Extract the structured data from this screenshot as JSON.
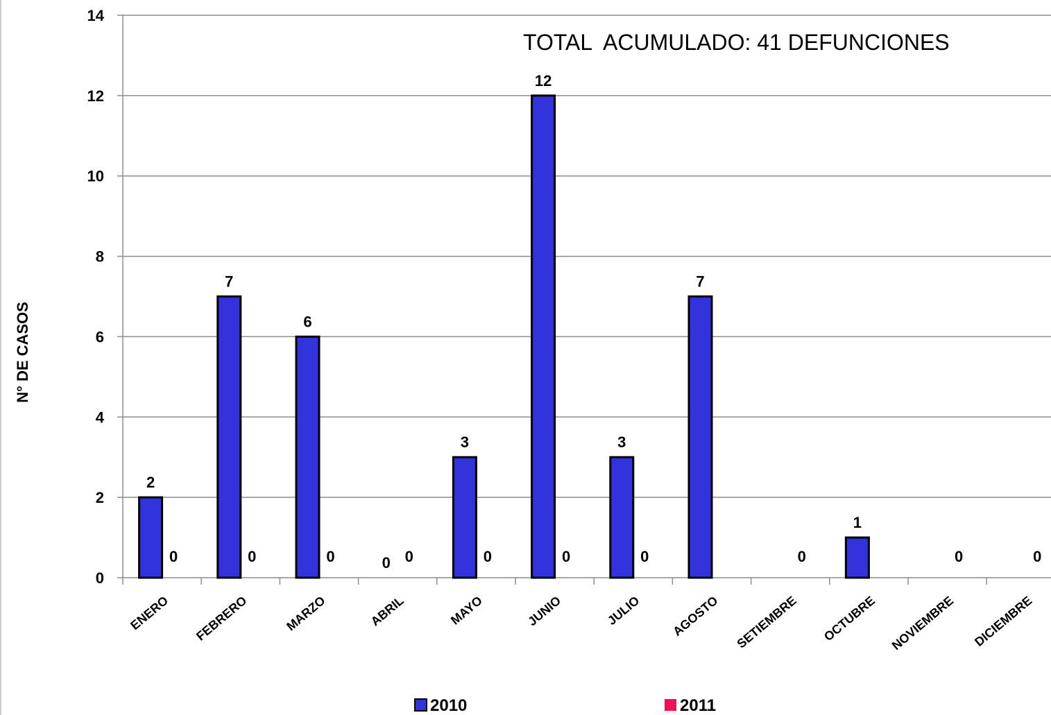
{
  "chart_data": {
    "type": "bar",
    "categories": [
      "ENERO",
      "FEBRERO",
      "MARZO",
      "ABRIL",
      "MAYO",
      "JUNIO",
      "JULIO",
      "AGOSTO",
      "SETIEMBRE",
      "OCTUBRE",
      "NOVIEMBRE",
      "DICIEMBRE"
    ],
    "series": [
      {
        "name": "2010",
        "color": "#3333dd",
        "values": [
          2,
          7,
          6,
          0,
          3,
          12,
          3,
          7,
          null,
          1,
          null,
          null
        ]
      },
      {
        "name": "2011",
        "color": "#ee1155",
        "values": [
          0,
          0,
          0,
          0,
          0,
          0,
          0,
          null,
          0,
          null,
          0,
          0
        ]
      }
    ],
    "title": "",
    "xlabel": "",
    "ylabel": "N° DE CASOS",
    "ylim": [
      0,
      14
    ],
    "yticks": [
      0,
      2,
      4,
      6,
      8,
      10,
      12,
      14
    ],
    "grid": true,
    "legend_position": "bottom",
    "annotation": "TOTAL  ACUMULADO: 41 DEFUNCIONES"
  }
}
